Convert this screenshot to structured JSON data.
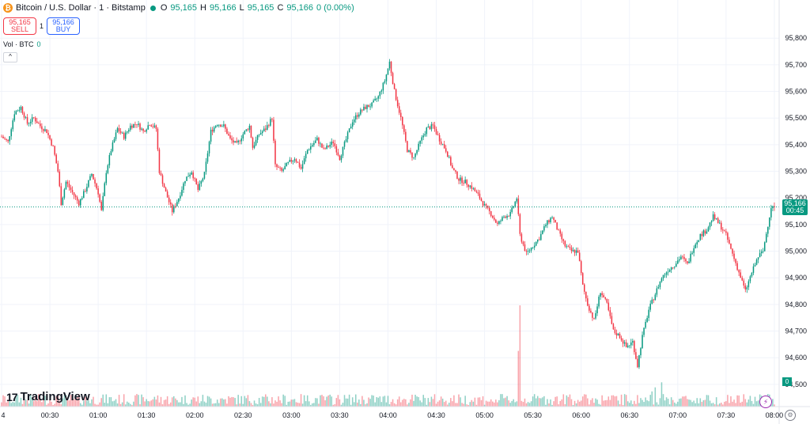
{
  "legend": {
    "symbol_name": "Bitcoin / U.S. Dollar · 1 · Bitstamp",
    "open_key": "O",
    "open": "95,165",
    "high_key": "H",
    "high": "95,166",
    "low_key": "L",
    "low": "95,165",
    "close_key": "C",
    "close": "95,166",
    "change": "0 (0.00%)"
  },
  "trade": {
    "sell_price": "95,165",
    "sell_label": "SELL",
    "spread": "1",
    "buy_price": "95,166",
    "buy_label": "BUY"
  },
  "volume_legend": {
    "label": "Vol · BTC",
    "value": "0"
  },
  "collapse_symbol": "^",
  "logo_text": "TradingView",
  "logo_mark": "17",
  "price_badge": {
    "price": "95,166",
    "countdown": "00:45"
  },
  "volume_badge": "0",
  "icons": {
    "coin": "bitcoin-icon",
    "bolt": "lightning-icon",
    "gear": "gear-icon"
  },
  "colors": {
    "up": "#089981",
    "down": "#f23645",
    "grid": "#f0f3fa",
    "text": "#131722"
  },
  "chart_data": {
    "type": "candlestick",
    "title": "",
    "y_ticks": [
      95800,
      95700,
      95600,
      95500,
      95400,
      95300,
      95200,
      95100,
      95000,
      94900,
      94800,
      94700,
      94600,
      94500
    ],
    "y_tick_labels": [
      "95,800",
      "95,700",
      "95,600",
      "95,500",
      "95,400",
      "95,300",
      "95,200",
      "95,100",
      "95,000",
      "94,900",
      "94,800",
      "94,700",
      "94,600",
      "94,500"
    ],
    "ylim": [
      94470,
      95860
    ],
    "x_ticks_minutes": [
      0,
      30,
      60,
      90,
      120,
      150,
      180,
      210,
      240,
      270,
      300,
      330,
      360,
      390,
      420,
      450,
      480
    ],
    "x_tick_labels": [
      "4",
      "00:30",
      "01:00",
      "01:30",
      "02:00",
      "02:30",
      "03:00",
      "03:30",
      "04:00",
      "04:30",
      "05:00",
      "05:30",
      "06:00",
      "06:30",
      "07:00",
      "07:30",
      "08:00"
    ],
    "xlim_minutes": [
      0,
      482
    ],
    "last_price": 95166,
    "close_path": [
      [
        0,
        95430
      ],
      [
        4,
        95410
      ],
      [
        8,
        95520
      ],
      [
        12,
        95540
      ],
      [
        16,
        95480
      ],
      [
        20,
        95500
      ],
      [
        24,
        95470
      ],
      [
        28,
        95450
      ],
      [
        32,
        95390
      ],
      [
        35,
        95300
      ],
      [
        37,
        95180
      ],
      [
        40,
        95260
      ],
      [
        44,
        95220
      ],
      [
        48,
        95180
      ],
      [
        52,
        95230
      ],
      [
        56,
        95290
      ],
      [
        60,
        95220
      ],
      [
        62,
        95150
      ],
      [
        65,
        95300
      ],
      [
        68,
        95380
      ],
      [
        72,
        95460
      ],
      [
        76,
        95430
      ],
      [
        80,
        95470
      ],
      [
        84,
        95480
      ],
      [
        88,
        95450
      ],
      [
        92,
        95480
      ],
      [
        96,
        95460
      ],
      [
        98,
        95300
      ],
      [
        102,
        95220
      ],
      [
        106,
        95150
      ],
      [
        110,
        95200
      ],
      [
        114,
        95270
      ],
      [
        118,
        95300
      ],
      [
        122,
        95230
      ],
      [
        126,
        95290
      ],
      [
        130,
        95450
      ],
      [
        134,
        95480
      ],
      [
        138,
        95470
      ],
      [
        142,
        95420
      ],
      [
        146,
        95400
      ],
      [
        150,
        95440
      ],
      [
        154,
        95470
      ],
      [
        156,
        95390
      ],
      [
        160,
        95440
      ],
      [
        164,
        95460
      ],
      [
        168,
        95500
      ],
      [
        170,
        95320
      ],
      [
        174,
        95300
      ],
      [
        178,
        95330
      ],
      [
        182,
        95350
      ],
      [
        186,
        95310
      ],
      [
        190,
        95380
      ],
      [
        196,
        95420
      ],
      [
        200,
        95380
      ],
      [
        206,
        95410
      ],
      [
        210,
        95350
      ],
      [
        214,
        95420
      ],
      [
        218,
        95490
      ],
      [
        222,
        95520
      ],
      [
        226,
        95540
      ],
      [
        230,
        95550
      ],
      [
        234,
        95580
      ],
      [
        238,
        95640
      ],
      [
        241,
        95710
      ],
      [
        244,
        95600
      ],
      [
        248,
        95500
      ],
      [
        252,
        95380
      ],
      [
        256,
        95350
      ],
      [
        260,
        95410
      ],
      [
        264,
        95460
      ],
      [
        268,
        95470
      ],
      [
        272,
        95420
      ],
      [
        276,
        95380
      ],
      [
        280,
        95310
      ],
      [
        284,
        95270
      ],
      [
        288,
        95260
      ],
      [
        292,
        95240
      ],
      [
        296,
        95210
      ],
      [
        300,
        95170
      ],
      [
        304,
        95140
      ],
      [
        308,
        95100
      ],
      [
        312,
        95130
      ],
      [
        316,
        95140
      ],
      [
        320,
        95200
      ],
      [
        322,
        95060
      ],
      [
        326,
        94990
      ],
      [
        330,
        95020
      ],
      [
        334,
        95050
      ],
      [
        338,
        95100
      ],
      [
        342,
        95130
      ],
      [
        346,
        95070
      ],
      [
        350,
        95020
      ],
      [
        354,
        95000
      ],
      [
        358,
        95000
      ],
      [
        361,
        94870
      ],
      [
        364,
        94800
      ],
      [
        368,
        94740
      ],
      [
        372,
        94850
      ],
      [
        376,
        94800
      ],
      [
        380,
        94700
      ],
      [
        384,
        94680
      ],
      [
        388,
        94640
      ],
      [
        392,
        94660
      ],
      [
        395,
        94570
      ],
      [
        398,
        94680
      ],
      [
        402,
        94780
      ],
      [
        406,
        94840
      ],
      [
        410,
        94900
      ],
      [
        414,
        94930
      ],
      [
        418,
        94950
      ],
      [
        422,
        94980
      ],
      [
        426,
        94950
      ],
      [
        430,
        95020
      ],
      [
        434,
        95060
      ],
      [
        438,
        95080
      ],
      [
        442,
        95130
      ],
      [
        446,
        95100
      ],
      [
        450,
        95060
      ],
      [
        454,
        94990
      ],
      [
        458,
        94920
      ],
      [
        462,
        94850
      ],
      [
        466,
        94920
      ],
      [
        470,
        94980
      ],
      [
        473,
        95000
      ],
      [
        476,
        95100
      ],
      [
        478,
        95166
      ],
      [
        480,
        95166
      ]
    ],
    "volume_spikes_minutes": [
      [
        322,
        1.0
      ],
      [
        321,
        0.55
      ],
      [
        410,
        0.24
      ],
      [
        406,
        0.19
      ],
      [
        404,
        0.15
      ],
      [
        353,
        0.12
      ],
      [
        222,
        0.07
      ],
      [
        96,
        0.07
      ],
      [
        330,
        0.1
      ],
      [
        305,
        0.05
      ],
      [
        470,
        0.06
      ]
    ]
  }
}
